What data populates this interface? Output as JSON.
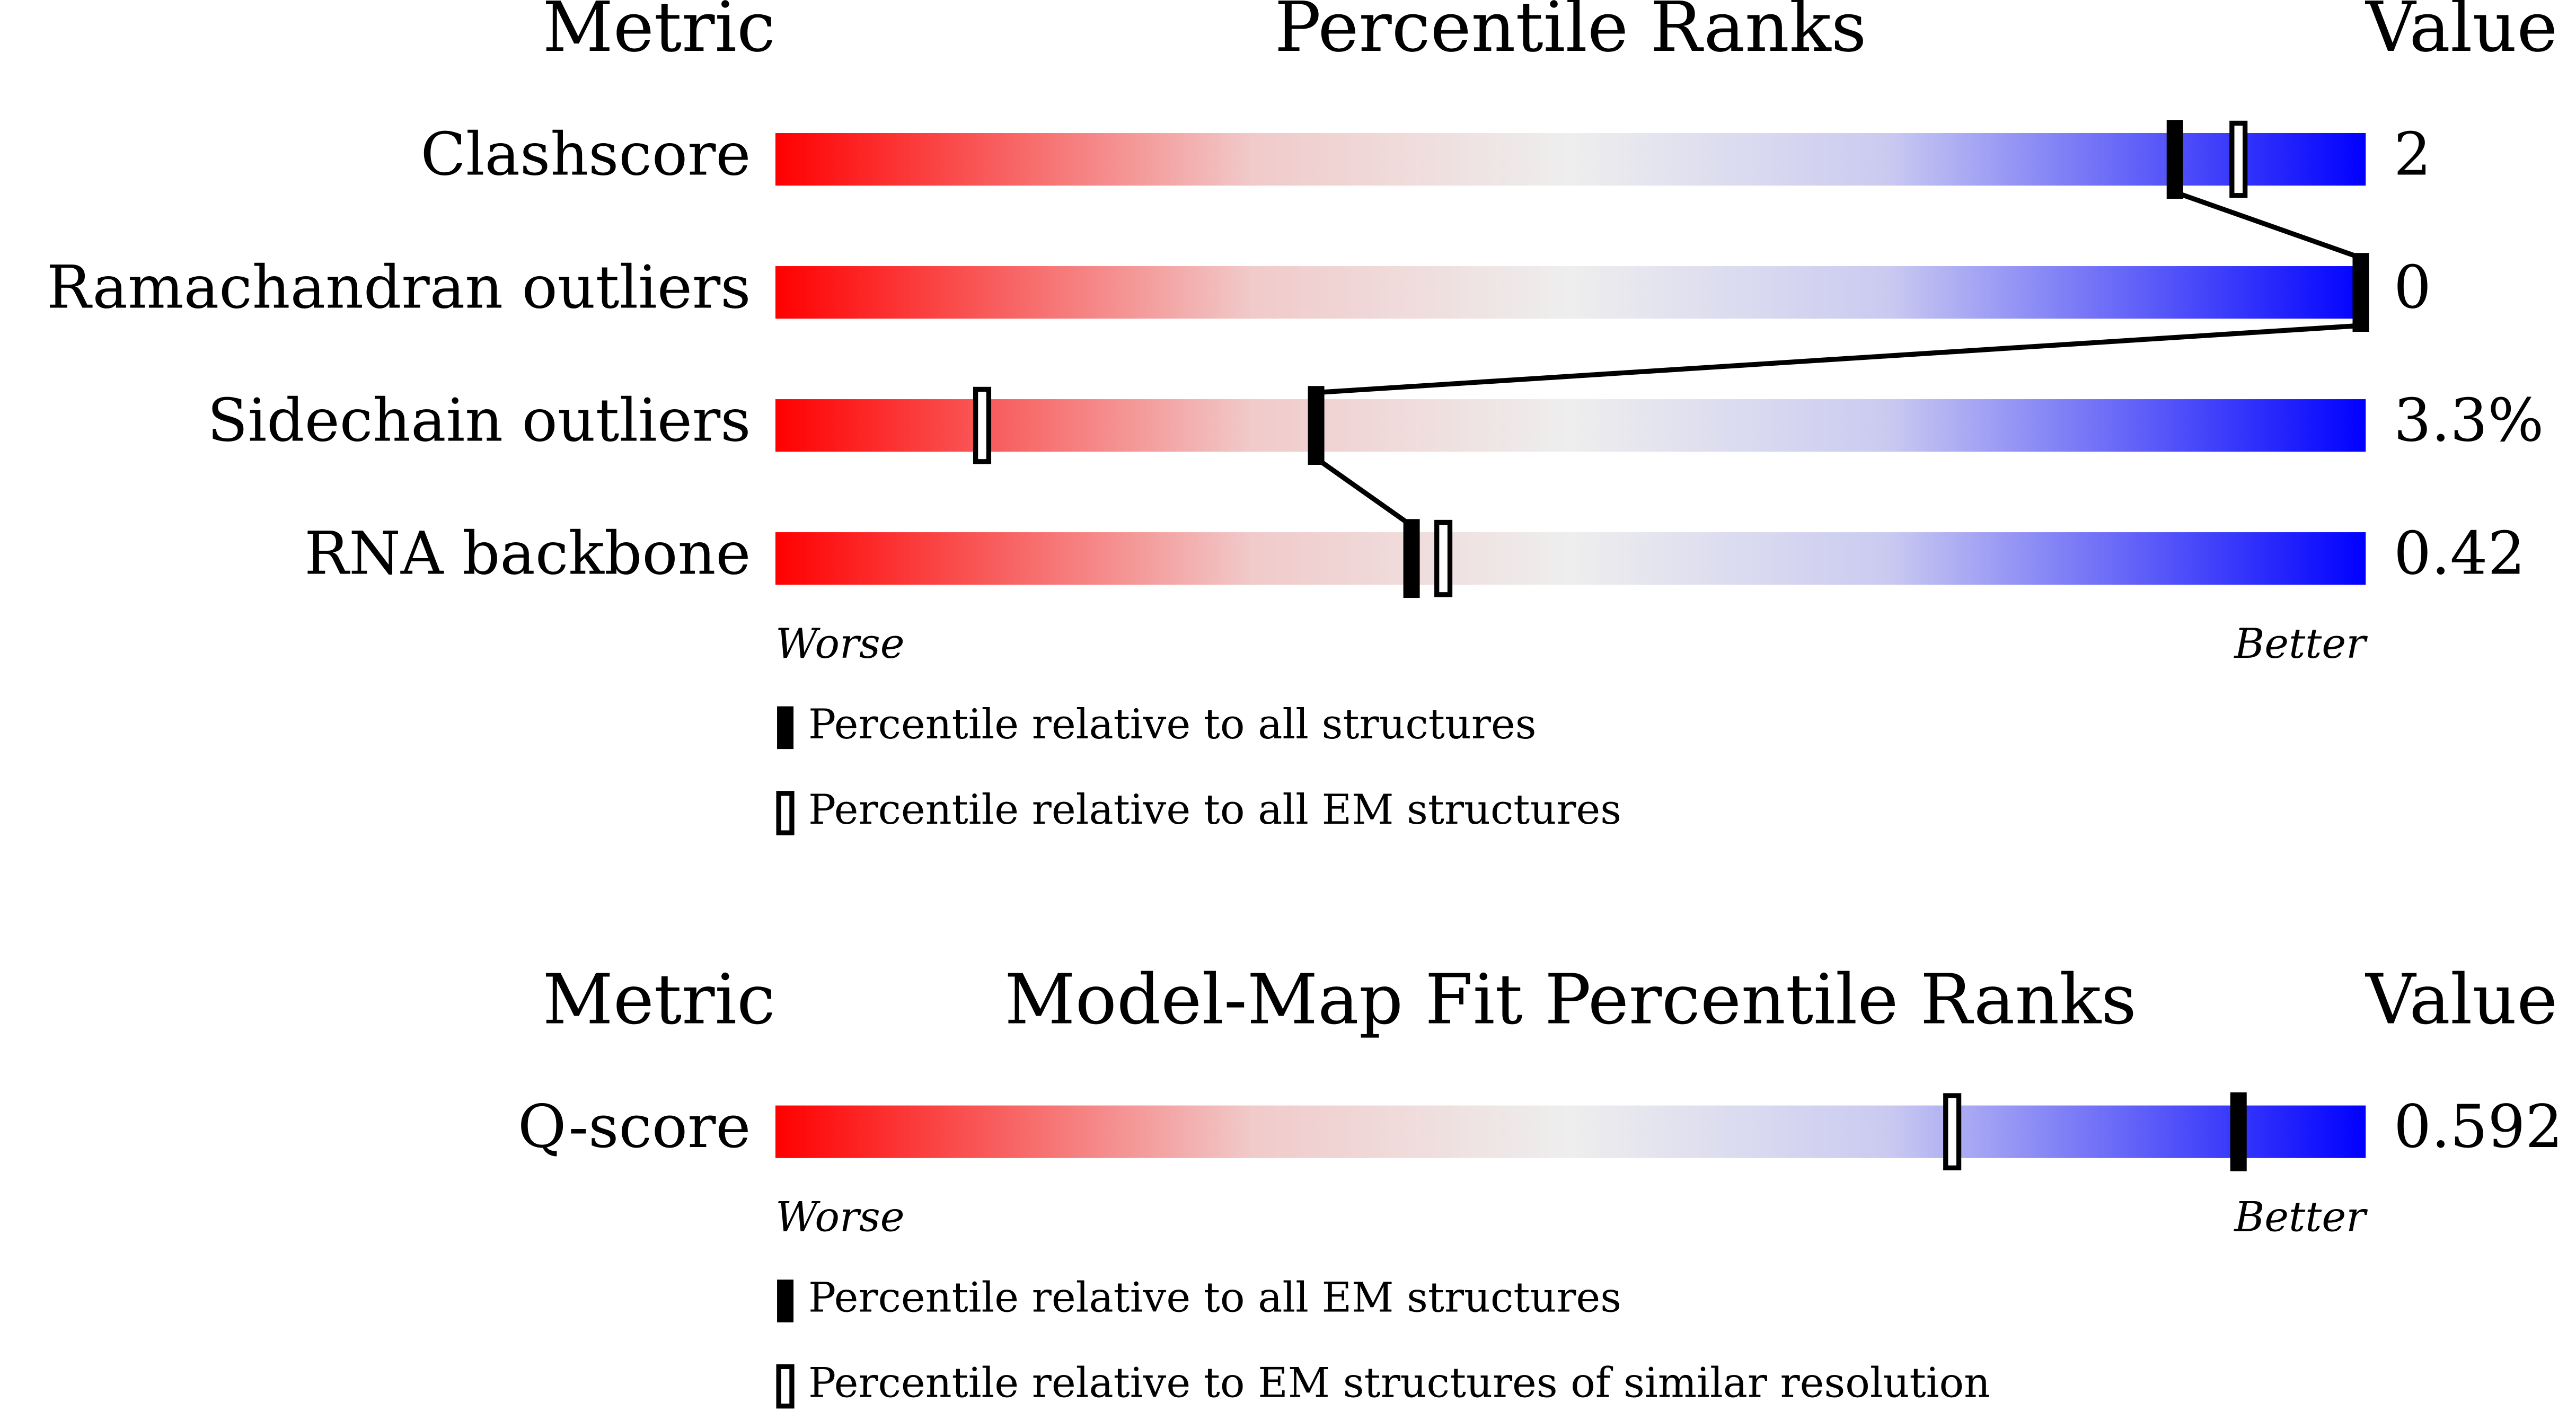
{
  "chart_data": [
    {
      "type": "percentile-slider",
      "metric_header": "Metric",
      "title": "Percentile Ranks",
      "value_header": "Value",
      "categories": [
        "Clashscore",
        "Ramachandran outliers",
        "Sidechain outliers",
        "RNA backbone"
      ],
      "metric_values": [
        "2",
        "0",
        "3.3%",
        "0.42"
      ],
      "series": [
        {
          "name": "Percentile relative to all structures",
          "style": "filled",
          "color": "#000000",
          "values": [
            88,
            100,
            34,
            40
          ]
        },
        {
          "name": "Percentile relative to all EM structures",
          "style": "open",
          "color": "#000000",
          "values": [
            92,
            null,
            13,
            42
          ]
        }
      ],
      "xlim": [
        0,
        100
      ],
      "low_label": "Worse",
      "high_label": "Better",
      "colors": [
        "#ff0000",
        "#eeeeee",
        "#0000ff"
      ]
    },
    {
      "type": "percentile-slider",
      "metric_header": "Metric",
      "title": "Model-Map Fit Percentile Ranks",
      "value_header": "Value",
      "categories": [
        "Q-score"
      ],
      "metric_values": [
        "0.592"
      ],
      "series": [
        {
          "name": "Percentile relative to all EM structures",
          "style": "filled",
          "color": "#000000",
          "values": [
            92
          ]
        },
        {
          "name": "Percentile relative to EM structures of similar resolution",
          "style": "open",
          "color": "#000000",
          "values": [
            74
          ]
        }
      ],
      "xlim": [
        0,
        100
      ],
      "low_label": "Worse",
      "high_label": "Better",
      "colors": [
        "#ff0000",
        "#eeeeee",
        "#0000ff"
      ]
    }
  ]
}
